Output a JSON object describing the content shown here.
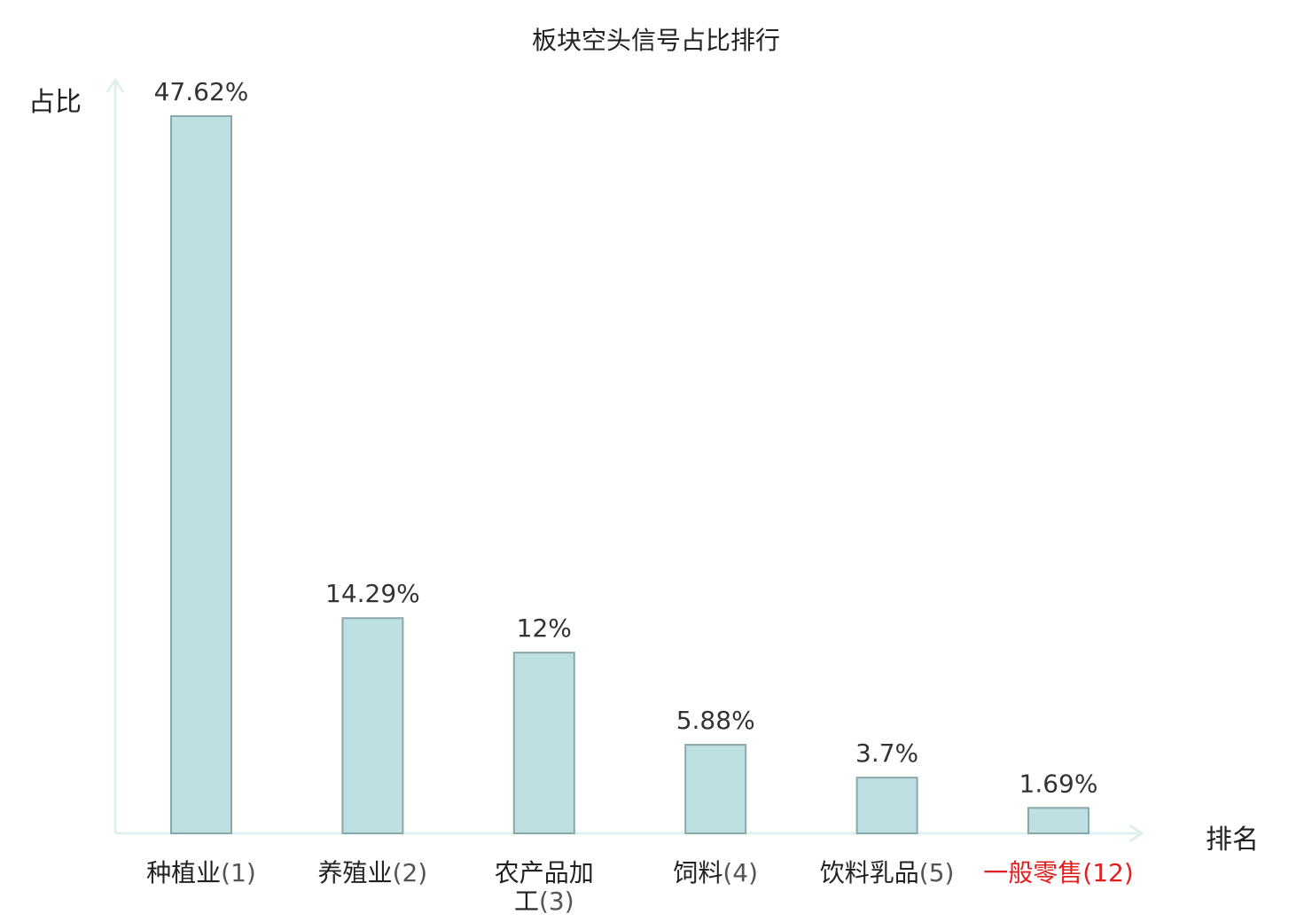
{
  "chart_data": {
    "type": "bar",
    "title": "板块空头信号占比排行",
    "ylabel": "占比",
    "xlabel": "排名",
    "categories": [
      {
        "name": "种植业",
        "rank": "(1)",
        "highlight": false
      },
      {
        "name": "养殖业",
        "rank": "(2)",
        "highlight": false
      },
      {
        "name": "农产品加工",
        "rank": "(3)",
        "highlight": false
      },
      {
        "name": "饲料",
        "rank": "(4)",
        "highlight": false
      },
      {
        "name": "饮料乳品",
        "rank": "(5)",
        "highlight": false
      },
      {
        "name": "一般零售",
        "rank": "(12)",
        "highlight": true
      }
    ],
    "values": [
      47.62,
      14.29,
      12,
      5.88,
      3.7,
      1.69
    ],
    "value_labels": [
      "47.62%",
      "14.29%",
      "12%",
      "5.88%",
      "3.7%",
      "1.69%"
    ],
    "ylim": [
      0,
      47.62
    ],
    "grid": false,
    "legend": "none"
  },
  "colors": {
    "bar_fill": "#bde0e2",
    "bar_stroke": "#8aa8aa",
    "axis": "#dff1ee",
    "text": "#222222",
    "highlight": "#e02020"
  }
}
